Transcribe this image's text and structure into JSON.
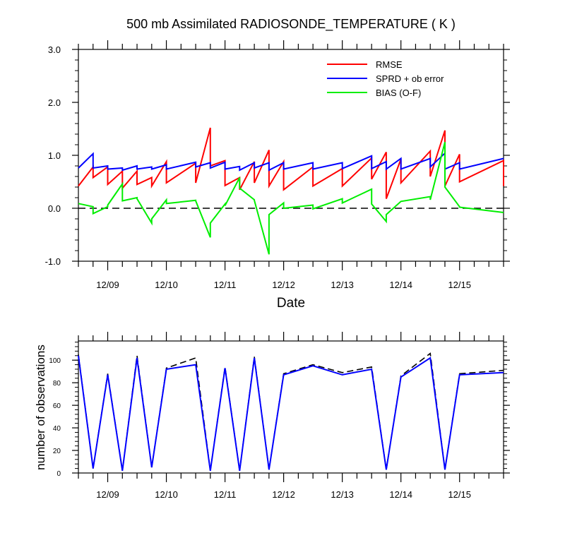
{
  "chart_data": [
    {
      "type": "line",
      "title": "500 mb Assimilated RADIOSONDE_TEMPERATURE ( K )",
      "xlabel": "Date",
      "ylabel": "",
      "ylim": [
        -1.0,
        3.0
      ],
      "xlim": [
        "12/08 12Z",
        "12/15 18Z"
      ],
      "x_ticks": [
        "12/09",
        "12/10",
        "12/11",
        "12/12",
        "12/13",
        "12/14",
        "12/15"
      ],
      "y_ticks": [
        "3.0",
        "2.0",
        "1.0",
        "0.0",
        "-1.0"
      ],
      "legend_position": "top-right",
      "reference_line": {
        "y": 0.0,
        "style": "dashed",
        "color": "#000000"
      },
      "series": [
        {
          "name": "RMSE",
          "color": "#ff0000",
          "points": [
            [
              8.5,
              0.42
            ],
            [
              8.75,
              0.78
            ],
            [
              8.75,
              0.58
            ],
            [
              9.0,
              0.78
            ],
            [
              9.0,
              0.45
            ],
            [
              9.25,
              0.7
            ],
            [
              9.25,
              0.38
            ],
            [
              9.5,
              0.7
            ],
            [
              9.5,
              0.45
            ],
            [
              9.75,
              0.58
            ],
            [
              9.75,
              0.42
            ],
            [
              10.0,
              0.88
            ],
            [
              10.0,
              0.48
            ],
            [
              10.5,
              0.85
            ],
            [
              10.5,
              0.48
            ],
            [
              10.75,
              1.52
            ],
            [
              10.75,
              0.8
            ],
            [
              11.0,
              0.9
            ],
            [
              11.0,
              0.43
            ],
            [
              11.25,
              0.58
            ],
            [
              11.25,
              0.35
            ],
            [
              11.5,
              0.88
            ],
            [
              11.5,
              0.48
            ],
            [
              11.75,
              1.1
            ],
            [
              11.75,
              0.42
            ],
            [
              12.0,
              0.88
            ],
            [
              12.0,
              0.35
            ],
            [
              12.5,
              0.78
            ],
            [
              12.5,
              0.42
            ],
            [
              13.0,
              0.75
            ],
            [
              13.0,
              0.42
            ],
            [
              13.5,
              0.95
            ],
            [
              13.5,
              0.55
            ],
            [
              13.75,
              1.06
            ],
            [
              13.75,
              0.18
            ],
            [
              14.0,
              0.93
            ],
            [
              14.0,
              0.48
            ],
            [
              14.5,
              1.08
            ],
            [
              14.5,
              0.6
            ],
            [
              14.75,
              1.47
            ],
            [
              14.75,
              0.42
            ],
            [
              15.0,
              1.02
            ],
            [
              15.0,
              0.5
            ],
            [
              15.75,
              0.9
            ],
            [
              15.75,
              0.42
            ]
          ]
        },
        {
          "name": "SPRD + ob error",
          "color": "#0000ff",
          "points": [
            [
              8.5,
              0.76
            ],
            [
              8.75,
              1.03
            ],
            [
              8.75,
              0.76
            ],
            [
              9.0,
              0.8
            ],
            [
              9.0,
              0.74
            ],
            [
              9.25,
              0.76
            ],
            [
              9.25,
              0.72
            ],
            [
              9.5,
              0.8
            ],
            [
              9.5,
              0.74
            ],
            [
              9.75,
              0.78
            ],
            [
              9.75,
              0.74
            ],
            [
              10.0,
              0.82
            ],
            [
              10.0,
              0.74
            ],
            [
              10.5,
              0.87
            ],
            [
              10.5,
              0.78
            ],
            [
              10.75,
              0.86
            ],
            [
              10.75,
              0.76
            ],
            [
              11.0,
              0.87
            ],
            [
              11.0,
              0.74
            ],
            [
              11.25,
              0.79
            ],
            [
              11.25,
              0.72
            ],
            [
              11.5,
              0.86
            ],
            [
              11.5,
              0.76
            ],
            [
              11.75,
              0.86
            ],
            [
              11.75,
              0.72
            ],
            [
              12.0,
              0.86
            ],
            [
              12.0,
              0.74
            ],
            [
              12.5,
              0.86
            ],
            [
              12.5,
              0.74
            ],
            [
              13.0,
              0.86
            ],
            [
              13.0,
              0.75
            ],
            [
              13.5,
              0.99
            ],
            [
              13.5,
              0.75
            ],
            [
              13.75,
              0.88
            ],
            [
              13.75,
              0.74
            ],
            [
              14.0,
              0.94
            ],
            [
              14.0,
              0.74
            ],
            [
              14.5,
              0.94
            ],
            [
              14.5,
              0.78
            ],
            [
              14.75,
              1.04
            ],
            [
              14.75,
              0.74
            ],
            [
              15.0,
              0.86
            ],
            [
              15.0,
              0.74
            ],
            [
              15.75,
              0.94
            ]
          ]
        },
        {
          "name": "BIAS (O-F)",
          "color": "#00ee00",
          "points": [
            [
              8.5,
              0.09
            ],
            [
              8.75,
              0.03
            ],
            [
              8.75,
              -0.1
            ],
            [
              9.0,
              0.03
            ],
            [
              9.0,
              0.06
            ],
            [
              9.25,
              0.46
            ],
            [
              9.25,
              0.14
            ],
            [
              9.5,
              0.2
            ],
            [
              9.5,
              0.18
            ],
            [
              9.75,
              -0.28
            ],
            [
              9.75,
              -0.2
            ],
            [
              10.0,
              0.16
            ],
            [
              10.0,
              0.09
            ],
            [
              10.5,
              0.15
            ],
            [
              10.5,
              0.14
            ],
            [
              10.75,
              -0.55
            ],
            [
              10.75,
              -0.28
            ],
            [
              11.0,
              0.08
            ],
            [
              11.0,
              0.05
            ],
            [
              11.25,
              0.58
            ],
            [
              11.25,
              0.38
            ],
            [
              11.5,
              0.16
            ],
            [
              11.5,
              0.15
            ],
            [
              11.75,
              -0.87
            ],
            [
              11.75,
              -0.12
            ],
            [
              12.0,
              0.1
            ],
            [
              12.0,
              0.0
            ],
            [
              12.5,
              0.06
            ],
            [
              12.5,
              -0.01
            ],
            [
              13.0,
              0.18
            ],
            [
              13.0,
              0.1
            ],
            [
              13.5,
              0.36
            ],
            [
              13.5,
              0.08
            ],
            [
              13.75,
              -0.25
            ],
            [
              13.75,
              -0.12
            ],
            [
              14.0,
              0.13
            ],
            [
              14.0,
              0.13
            ],
            [
              14.5,
              0.22
            ],
            [
              14.5,
              0.16
            ],
            [
              14.75,
              1.25
            ],
            [
              14.75,
              0.4
            ],
            [
              15.0,
              0.03
            ],
            [
              15.0,
              0.02
            ],
            [
              15.75,
              -0.08
            ]
          ]
        }
      ]
    },
    {
      "type": "line",
      "title": "",
      "xlabel": "",
      "ylabel": "number of observations",
      "ylim": [
        0,
        117
      ],
      "xlim": [
        "12/08 12Z",
        "12/15 18Z"
      ],
      "x_ticks": [
        "12/09",
        "12/10",
        "12/11",
        "12/12",
        "12/13",
        "12/14",
        "12/15"
      ],
      "y_ticks": [
        "100",
        "80",
        "60",
        "40",
        "20",
        "0"
      ],
      "series": [
        {
          "style": "dashed",
          "color": "#000000",
          "points": [
            [
              8.5,
              105
            ],
            [
              8.75,
              4
            ],
            [
              9.0,
              88
            ],
            [
              9.25,
              2
            ],
            [
              9.5,
              104
            ],
            [
              9.75,
              5
            ],
            [
              10.0,
              93
            ],
            [
              10.5,
              102
            ],
            [
              10.75,
              2
            ],
            [
              11.0,
              94
            ],
            [
              11.25,
              2
            ],
            [
              11.5,
              103
            ],
            [
              11.75,
              3
            ],
            [
              12.0,
              88
            ],
            [
              12.5,
              96
            ],
            [
              13.0,
              89
            ],
            [
              13.5,
              94
            ],
            [
              13.75,
              3
            ],
            [
              14.0,
              86
            ],
            [
              14.5,
              106
            ],
            [
              14.75,
              3
            ],
            [
              15.0,
              88
            ],
            [
              15.75,
              91
            ]
          ]
        },
        {
          "style": "solid",
          "color": "#0000ff",
          "points": [
            [
              8.5,
              104
            ],
            [
              8.75,
              4
            ],
            [
              9.0,
              87
            ],
            [
              9.25,
              2
            ],
            [
              9.5,
              102
            ],
            [
              9.75,
              5
            ],
            [
              10.0,
              92
            ],
            [
              10.5,
              96
            ],
            [
              10.75,
              2
            ],
            [
              11.0,
              93
            ],
            [
              11.25,
              2
            ],
            [
              11.5,
              102
            ],
            [
              11.75,
              3
            ],
            [
              12.0,
              87
            ],
            [
              12.5,
              95
            ],
            [
              13.0,
              87
            ],
            [
              13.5,
              92
            ],
            [
              13.75,
              3
            ],
            [
              14.0,
              85
            ],
            [
              14.5,
              102
            ],
            [
              14.75,
              3
            ],
            [
              15.0,
              87
            ],
            [
              15.75,
              89
            ]
          ]
        }
      ]
    }
  ]
}
